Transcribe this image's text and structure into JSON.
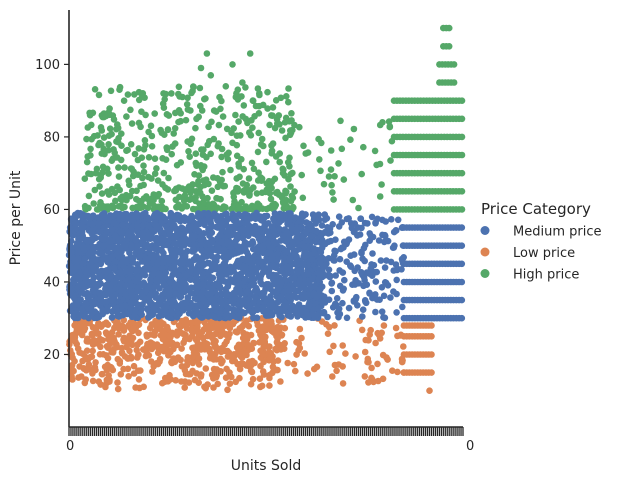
{
  "chart_data": {
    "type": "scatter",
    "title": "",
    "xlabel": "Units Sold",
    "ylabel": "Price per Unit",
    "ylim": [
      0,
      115
    ],
    "yticks": [
      20,
      40,
      60,
      80,
      100
    ],
    "x_tick_first": "0",
    "x_tick_last": "0",
    "x_range_units": [
      0,
      200
    ],
    "grid": false,
    "legend": {
      "title": "Price Category",
      "placement": "right"
    },
    "series": [
      {
        "name": "Medium price",
        "color": "#4c72b0",
        "y_range": [
          30,
          60
        ],
        "x_dense_range": [
          0,
          130
        ],
        "x_sparse_range": [
          130,
          170
        ],
        "x_striped_range": [
          170,
          200
        ],
        "striped_y_values": [
          30,
          35,
          40,
          45,
          50,
          55
        ]
      },
      {
        "name": "Low price",
        "color": "#dd8452",
        "y_range": [
          7,
          30
        ],
        "x_dense_range": [
          0,
          110
        ],
        "x_sparse_range": [
          110,
          170
        ],
        "x_striped_range": [
          170,
          185
        ],
        "striped_y_values": [
          15,
          20,
          25,
          28
        ]
      },
      {
        "name": "High price",
        "color": "#55a868",
        "y_range": [
          60,
          110
        ],
        "x_dense_range": [
          0,
          115
        ],
        "x_sparse_range": [
          115,
          165
        ],
        "x_striped_range": [
          165,
          200
        ],
        "striped_y_values": [
          60,
          65,
          70,
          75,
          80,
          85,
          90,
          95,
          100,
          105,
          110
        ]
      }
    ]
  }
}
